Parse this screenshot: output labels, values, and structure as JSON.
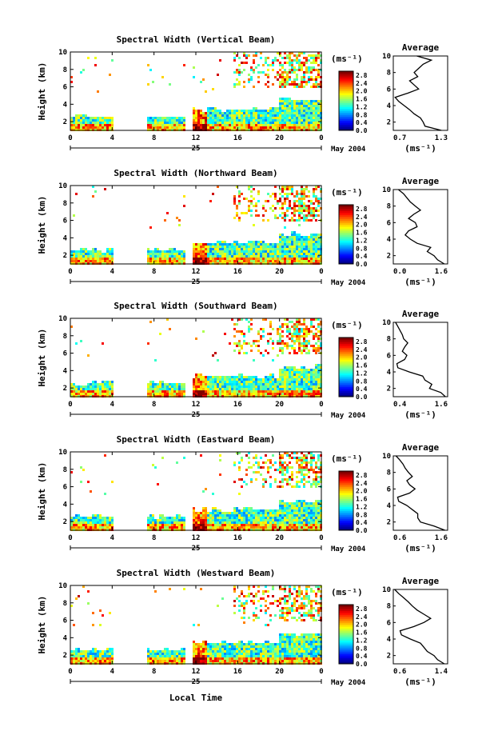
{
  "chart_data": {
    "type": "heatmap",
    "date_label": "May 2004",
    "day_label": "25",
    "xlabel": "Local Time",
    "ylabel": "Height (km)",
    "x_ticks": [
      "0",
      "4",
      "8",
      "12",
      "16",
      "20",
      "0"
    ],
    "y_ticks": [
      "2",
      "4",
      "6",
      "8",
      "10"
    ],
    "xlim": [
      0,
      24
    ],
    "ylim": [
      1,
      10
    ],
    "colorbar_unit": "(ms⁻¹)",
    "colorbar_ticks": [
      "2.8",
      "2.4",
      "2.0",
      "1.6",
      "1.2",
      "0.8",
      "0.4",
      "0.0"
    ],
    "colorbar_range": [
      0.0,
      3.0
    ],
    "profile_title": "Average",
    "profile_xlabel": "(ms⁻¹)",
    "panels": [
      {
        "title": "Spectral Width (Vertical Beam)",
        "profile_xlim": [
          0.7,
          1.3
        ],
        "profile_xticks": [
          "0.7",
          "1.3"
        ],
        "profile": [
          [
            1.0,
            1.23
          ],
          [
            1.5,
            1.05
          ],
          [
            2.0,
            1.03
          ],
          [
            2.5,
            1.0
          ],
          [
            3.0,
            0.93
          ],
          [
            3.5,
            0.88
          ],
          [
            4.0,
            0.82
          ],
          [
            4.5,
            0.76
          ],
          [
            5.0,
            0.72
          ],
          [
            5.5,
            0.86
          ],
          [
            6.0,
            0.98
          ],
          [
            6.5,
            0.93
          ],
          [
            7.0,
            0.88
          ],
          [
            7.5,
            0.97
          ],
          [
            8.0,
            0.93
          ],
          [
            8.5,
            0.98
          ],
          [
            9.0,
            1.03
          ],
          [
            9.5,
            1.12
          ],
          [
            10.0,
            0.96
          ]
        ]
      },
      {
        "title": "Spectral Width (Northward Beam)",
        "profile_xlim": [
          0.0,
          1.6
        ],
        "profile_xticks": [
          "0.0",
          "1.6"
        ],
        "profile": [
          [
            1.0,
            1.5
          ],
          [
            1.5,
            1.3
          ],
          [
            2.0,
            1.2
          ],
          [
            2.5,
            1.0
          ],
          [
            3.0,
            1.1
          ],
          [
            3.5,
            0.7
          ],
          [
            4.0,
            0.5
          ],
          [
            4.5,
            0.35
          ],
          [
            5.0,
            0.45
          ],
          [
            5.5,
            0.7
          ],
          [
            6.0,
            0.65
          ],
          [
            6.5,
            0.45
          ],
          [
            7.0,
            0.6
          ],
          [
            7.5,
            0.8
          ],
          [
            8.0,
            0.65
          ],
          [
            8.5,
            0.5
          ],
          [
            9.0,
            0.4
          ],
          [
            9.5,
            0.3
          ],
          [
            10.0,
            0.15
          ]
        ]
      },
      {
        "title": "Spectral Width (Southward Beam)",
        "profile_xlim": [
          0.4,
          1.6
        ],
        "profile_xticks": [
          "0.4",
          "1.6"
        ],
        "profile": [
          [
            1.0,
            1.55
          ],
          [
            1.5,
            1.45
          ],
          [
            2.0,
            1.2
          ],
          [
            2.5,
            1.25
          ],
          [
            3.0,
            1.1
          ],
          [
            3.5,
            1.05
          ],
          [
            4.0,
            0.75
          ],
          [
            4.5,
            0.5
          ],
          [
            5.0,
            0.48
          ],
          [
            5.5,
            0.65
          ],
          [
            6.0,
            0.7
          ],
          [
            6.5,
            0.6
          ],
          [
            7.0,
            0.65
          ],
          [
            7.5,
            0.72
          ],
          [
            8.0,
            0.63
          ],
          [
            8.5,
            0.6
          ],
          [
            9.0,
            0.55
          ],
          [
            9.5,
            0.5
          ],
          [
            10.0,
            0.45
          ]
        ]
      },
      {
        "title": "Spectral Width (Eastward Beam)",
        "profile_xlim": [
          0.6,
          1.6
        ],
        "profile_xticks": [
          "0.6",
          "1.6"
        ],
        "profile": [
          [
            1.0,
            1.55
          ],
          [
            1.5,
            1.35
          ],
          [
            2.0,
            1.1
          ],
          [
            2.5,
            1.05
          ],
          [
            3.0,
            1.05
          ],
          [
            3.5,
            0.95
          ],
          [
            4.0,
            0.85
          ],
          [
            4.5,
            0.7
          ],
          [
            5.0,
            0.68
          ],
          [
            5.5,
            0.9
          ],
          [
            6.0,
            1.0
          ],
          [
            6.5,
            0.9
          ],
          [
            7.0,
            0.85
          ],
          [
            7.5,
            0.95
          ],
          [
            8.0,
            0.88
          ],
          [
            8.5,
            0.82
          ],
          [
            9.0,
            0.78
          ],
          [
            9.5,
            0.72
          ],
          [
            10.0,
            0.65
          ]
        ]
      },
      {
        "title": "Spectral Width (Westward Beam)",
        "profile_xlim": [
          0.6,
          1.4
        ],
        "profile_xticks": [
          "0.6",
          "1.4"
        ],
        "profile": [
          [
            1.0,
            1.35
          ],
          [
            1.5,
            1.25
          ],
          [
            2.0,
            1.2
          ],
          [
            2.5,
            1.1
          ],
          [
            3.0,
            1.05
          ],
          [
            3.5,
            1.0
          ],
          [
            4.0,
            0.85
          ],
          [
            4.5,
            0.72
          ],
          [
            5.0,
            0.7
          ],
          [
            5.5,
            0.9
          ],
          [
            6.0,
            1.05
          ],
          [
            6.5,
            1.15
          ],
          [
            7.0,
            1.05
          ],
          [
            7.5,
            0.95
          ],
          [
            8.0,
            0.88
          ],
          [
            8.5,
            0.82
          ],
          [
            9.0,
            0.75
          ],
          [
            9.5,
            0.68
          ],
          [
            10.0,
            0.62
          ]
        ]
      }
    ]
  }
}
